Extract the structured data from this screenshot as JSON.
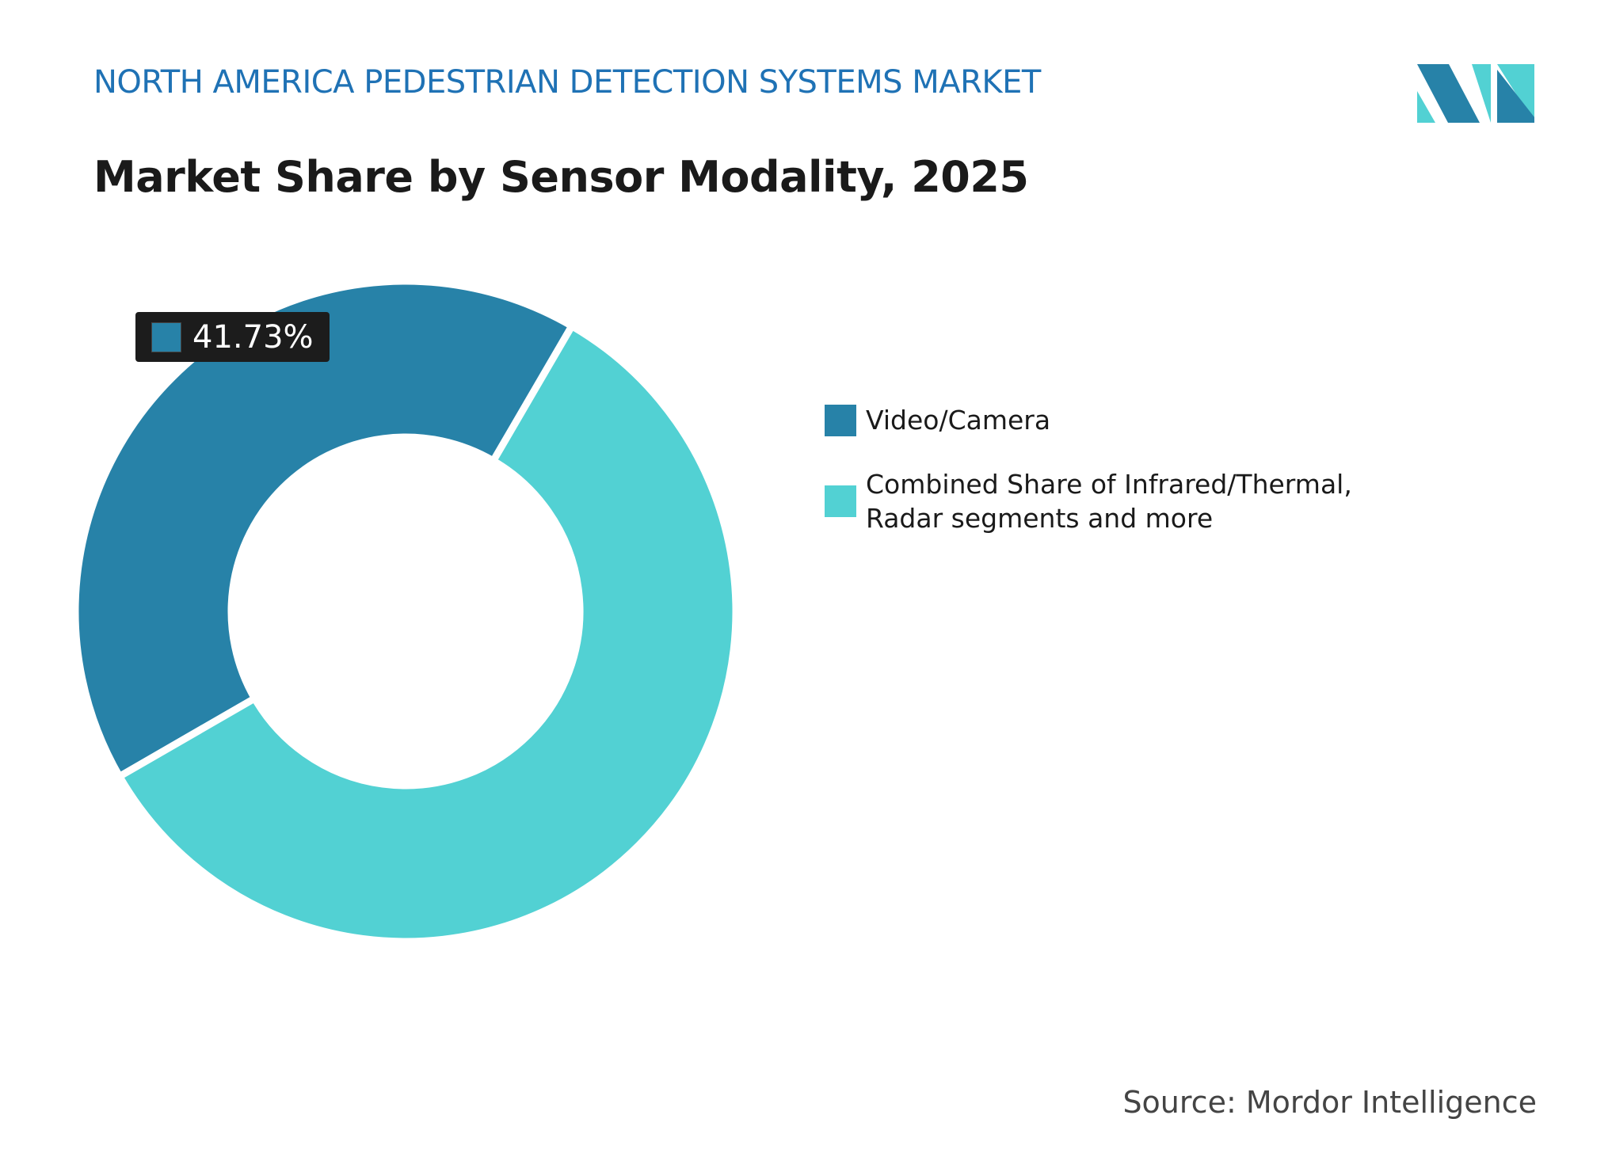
{
  "chart_data": {
    "type": "pie",
    "header": "NORTH AMERICA PEDESTRIAN DETECTION SYSTEMS MARKET",
    "title": "Market Share by Sensor Modality, 2025",
    "categories": [
      "Video/Camera",
      "Combined Share of Infrared/Thermal, Radar segments and more"
    ],
    "values": [
      41.73,
      58.27
    ],
    "value_labels": [
      "41.73%",
      null
    ],
    "colors": [
      "#2782a8",
      "#52d1d3"
    ],
    "donut": true,
    "source": "Source: Mordor Intelligence"
  }
}
